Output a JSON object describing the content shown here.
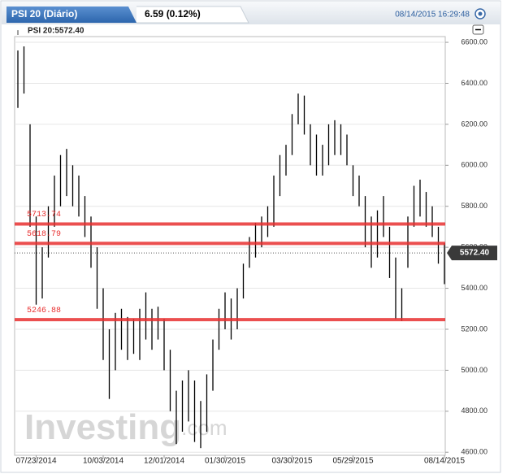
{
  "chart_data": {
    "type": "range_bar",
    "tab_title": "PSI 20 (Diário)",
    "change": "6.59 (0.12%)",
    "timestamp": "08/14/2015 16:29:48",
    "instrument_label": "PSI 20:5572.40",
    "watermark": {
      "main": "Investing",
      "suffix": ".com"
    },
    "last": {
      "value": 5572.4,
      "label": "5572.40"
    },
    "color": "#000000",
    "categories": [
      null,
      null,
      null,
      "07/23/2014",
      null,
      null,
      null,
      null,
      null,
      null,
      null,
      null,
      null,
      null,
      "10/03/2014",
      null,
      null,
      null,
      null,
      null,
      null,
      null,
      null,
      null,
      "12/01/2014",
      null,
      null,
      null,
      null,
      null,
      null,
      null,
      null,
      null,
      "01/30/2015",
      null,
      null,
      null,
      null,
      null,
      null,
      null,
      null,
      null,
      null,
      "03/30/2015",
      null,
      null,
      null,
      null,
      null,
      null,
      null,
      null,
      null,
      "05/29/2015",
      null,
      null,
      null,
      null,
      null,
      null,
      null,
      null,
      null,
      null,
      null,
      null,
      null,
      null,
      "08/14/2015"
    ],
    "low": [
      6280,
      6350,
      5700,
      5320,
      5350,
      5550,
      5700,
      5800,
      5850,
      5800,
      5750,
      5650,
      5500,
      5300,
      5050,
      4860,
      5000,
      5100,
      5050,
      5080,
      5050,
      5150,
      5100,
      5150,
      5000,
      4800,
      4640,
      4700,
      4750,
      4650,
      4620,
      4700,
      4900,
      5100,
      5200,
      5150,
      5200,
      5350,
      5500,
      5550,
      5600,
      5650,
      5700,
      5850,
      5950,
      6050,
      6200,
      6150,
      6000,
      5950,
      5950,
      6000,
      6050,
      6050,
      6000,
      5850,
      5800,
      5600,
      5500,
      5550,
      5650,
      5450,
      5250,
      5240,
      5500,
      5700,
      5750,
      5700,
      5650,
      5520,
      5420
    ],
    "high": [
      6560,
      6580,
      6200,
      5750,
      5600,
      5800,
      5950,
      6050,
      6080,
      6000,
      5950,
      5850,
      5750,
      5600,
      5400,
      5200,
      5280,
      5300,
      5260,
      5250,
      5300,
      5380,
      5300,
      5310,
      5250,
      5100,
      4900,
      4950,
      5000,
      4950,
      4850,
      4980,
      5150,
      5300,
      5380,
      5350,
      5400,
      5520,
      5650,
      5720,
      5750,
      5800,
      5950,
      6050,
      6100,
      6250,
      6350,
      6340,
      6200,
      6150,
      6100,
      6200,
      6220,
      6200,
      6150,
      6000,
      5950,
      5850,
      5750,
      5780,
      5850,
      5700,
      5550,
      5400,
      5750,
      5900,
      5930,
      5870,
      5800,
      5700,
      5620
    ],
    "reference_lines": [
      {
        "value": 5713.74,
        "color": "#e83030"
      },
      {
        "value": 5618.79,
        "color": "#e83030"
      },
      {
        "value": 5246.88,
        "color": "#e83030"
      }
    ],
    "ylim": [
      4585,
      6628
    ],
    "yticks": [
      {
        "value": 4600,
        "label": "4600.00"
      },
      {
        "value": 4800,
        "label": "4800.00"
      },
      {
        "value": 5000,
        "label": "5000.00"
      },
      {
        "value": 5200,
        "label": "5200.00"
      },
      {
        "value": 5400,
        "label": "5400.00"
      },
      {
        "value": 5600,
        "label": "5600.00"
      },
      {
        "value": 5800,
        "label": "5800.00"
      },
      {
        "value": 6000,
        "label": "6000.00"
      },
      {
        "value": 6200,
        "label": "6200.00"
      },
      {
        "value": 6400,
        "label": "6400.00"
      },
      {
        "value": 6600,
        "label": "6600.00"
      }
    ],
    "grid": true
  }
}
